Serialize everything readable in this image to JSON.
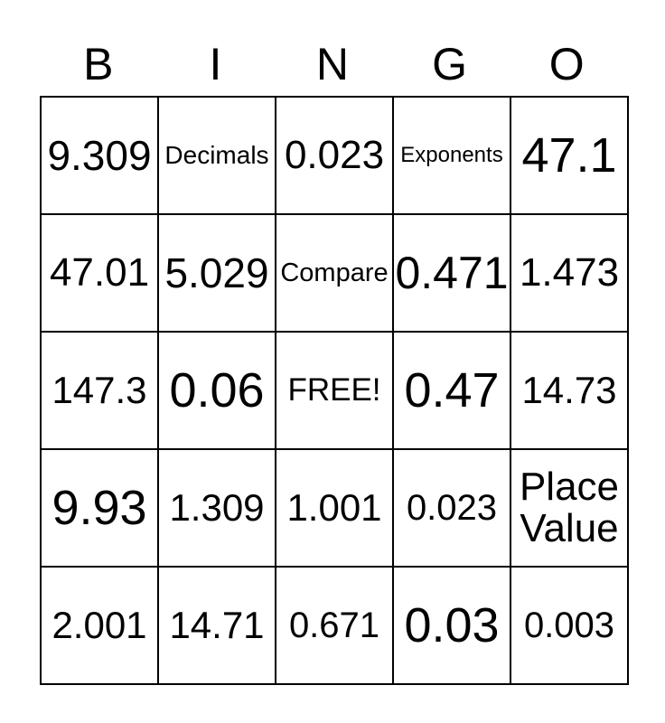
{
  "colors": {
    "background": "#ffffff",
    "text": "#000000",
    "grid_border": "#000000"
  },
  "header": {
    "letters": [
      "B",
      "I",
      "N",
      "G",
      "O"
    ]
  },
  "card": {
    "rows": [
      [
        "9.309",
        "Decimals",
        "0.023",
        "Exponents",
        "47.1"
      ],
      [
        "47.01",
        "5.029",
        "Compare",
        "0.471",
        "1.473"
      ],
      [
        "147.3",
        "0.06",
        "FREE!",
        "0.47",
        "14.73"
      ],
      [
        "9.93",
        "1.309",
        "1.001",
        "0.023",
        "Place Value"
      ],
      [
        "2.001",
        "14.71",
        "0.671",
        "0.03",
        "0.003"
      ]
    ]
  }
}
